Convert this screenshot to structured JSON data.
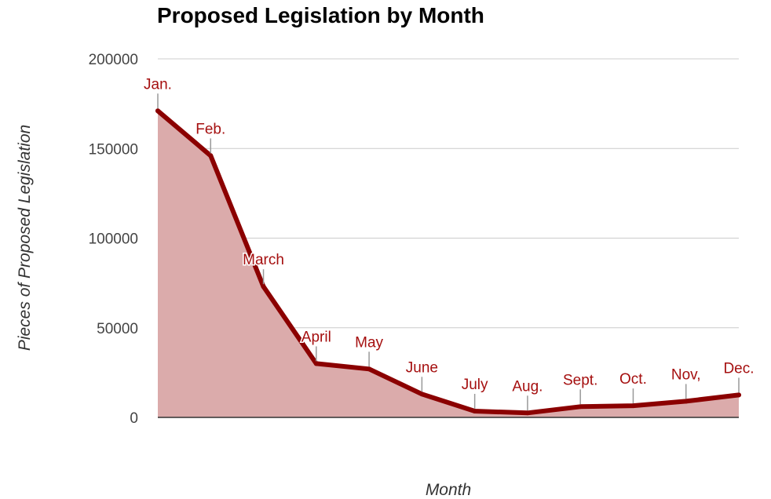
{
  "chart_data": {
    "type": "area",
    "title": "Proposed Legislation by Month",
    "xlabel": "Month",
    "ylabel": "Pieces of Proposed Legislation",
    "ylim": [
      0,
      200000
    ],
    "yticks": [
      "0",
      "50000",
      "100000",
      "150000",
      "200000"
    ],
    "x": [
      "Jan.",
      "Feb.",
      "March",
      "April",
      "May",
      "June",
      "July",
      "Aug.",
      "Sept.",
      "Oct.",
      "Nov,",
      "Dec."
    ],
    "values": [
      171000,
      146000,
      73000,
      30000,
      27000,
      13000,
      3500,
      2500,
      6000,
      6500,
      9000,
      12500
    ],
    "grid": true,
    "colors": {
      "line": "#8b0000",
      "fill": "#dbabab",
      "annotation": "#a50f0f"
    }
  }
}
